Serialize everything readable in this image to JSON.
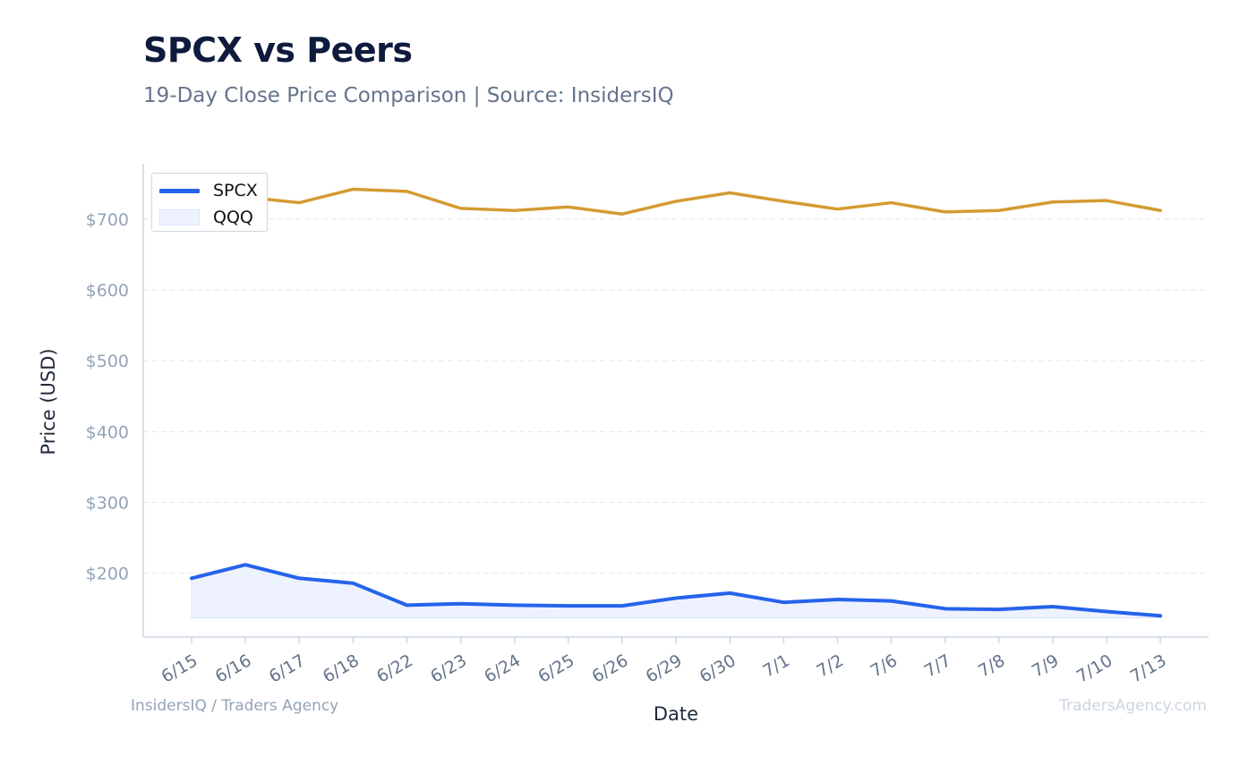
{
  "header": {
    "title": "SPCX vs Peers",
    "subtitle": "19-Day Close Price Comparison | Source: InsidersIQ"
  },
  "footer": {
    "left": "InsidersIQ / Traders Agency",
    "right": "TradersAgency.com"
  },
  "colors": {
    "spcx": "#2563eb",
    "spcx_fill": "#eef2fe",
    "peer": "#d49b32",
    "axis": "#cbd5e1",
    "grid": "#e5e7eb",
    "tick_text": "#94a3b8",
    "label_text": "#1e293b"
  },
  "legend": {
    "placement": "top-left",
    "items": [
      {
        "label": "SPCX",
        "marker": "line"
      },
      {
        "label": "QQQ",
        "marker": "area"
      }
    ]
  },
  "chart_data": {
    "type": "line",
    "xlabel": "Date",
    "ylabel": "Price (USD)",
    "ylim": [
      110,
      778
    ],
    "yticks": [
      200,
      300,
      400,
      500,
      600,
      700
    ],
    "ytick_labels": [
      "$200",
      "$300",
      "$400",
      "$500",
      "$600",
      "$700"
    ],
    "grid": true,
    "categories": [
      "6/15",
      "6/16",
      "6/17",
      "6/18",
      "6/22",
      "6/23",
      "6/24",
      "6/25",
      "6/26",
      "6/29",
      "6/30",
      "7/1",
      "7/2",
      "7/6",
      "7/7",
      "7/8",
      "7/9",
      "7/10",
      "7/13"
    ],
    "series": [
      {
        "name": "SPCX",
        "values": [
          193,
          212,
          193,
          186,
          155,
          157,
          155,
          154,
          154,
          165,
          172,
          159,
          163,
          161,
          150,
          149,
          153,
          146,
          140
        ]
      },
      {
        "values": [
          747,
          731,
          723,
          742,
          739,
          715,
          712,
          717,
          707,
          725,
          737,
          725,
          714,
          723,
          710,
          712,
          724,
          726,
          712
        ]
      }
    ],
    "area_baseline": 137
  }
}
